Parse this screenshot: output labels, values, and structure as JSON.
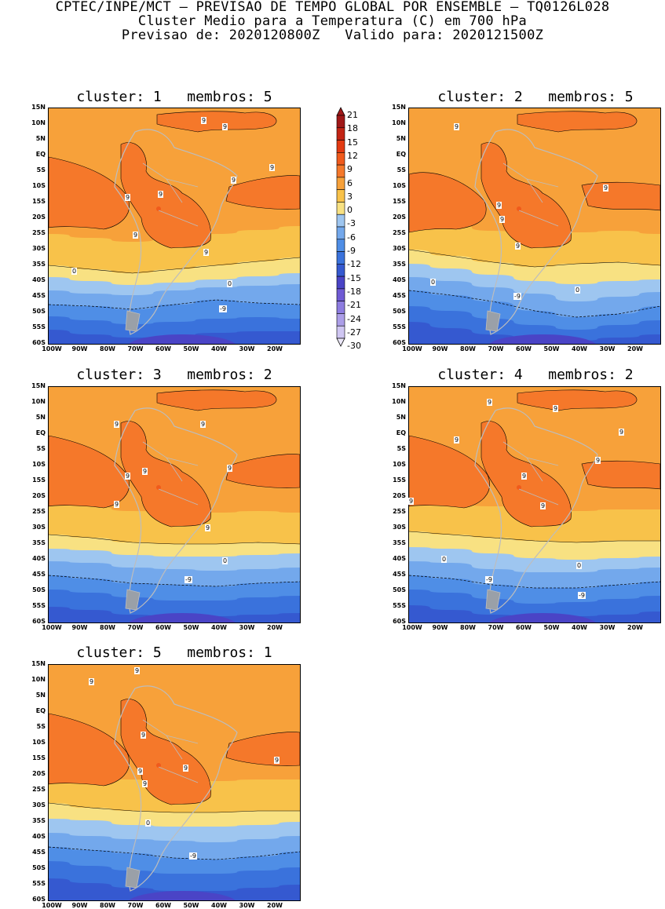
{
  "header": {
    "line1": "CPTEC/INPE/MCT — PREVISAO DE TEMPO GLOBAL POR ENSEMBLE — TQ0126L028",
    "line2": "Cluster Medio para a Temperatura (C) em 700 hPa",
    "line3": "Previsao de: 2020120800Z   Valido para: 2020121500Z"
  },
  "lat_labels": [
    "15N",
    "10N",
    "5N",
    "EQ",
    "5S",
    "10S",
    "15S",
    "20S",
    "25S",
    "30S",
    "35S",
    "40S",
    "45S",
    "50S",
    "55S",
    "60S"
  ],
  "lon_labels": [
    "100W",
    "90W",
    "80W",
    "70W",
    "60W",
    "50W",
    "40W",
    "30W",
    "20W"
  ],
  "colorbar": {
    "labels": [
      "21",
      "18",
      "15",
      "12",
      "9",
      "6",
      "3",
      "0",
      "-3",
      "-6",
      "-9",
      "-12",
      "-15",
      "-18",
      "-21",
      "-24",
      "-27",
      "-30"
    ],
    "colors": [
      "#a01818",
      "#c22414",
      "#e23a12",
      "#f05a1c",
      "#f5782a",
      "#f7a13a",
      "#f8c24a",
      "#f8e182",
      "#9ec6f0",
      "#73a8ec",
      "#4f8ee6",
      "#3a72dc",
      "#3559d0",
      "#4a44c6",
      "#6f5ad4",
      "#8d7ce0",
      "#ac9ee8",
      "#cfc6f2"
    ]
  },
  "panels": [
    {
      "title": "cluster: 1   membros: 5",
      "labels": [
        "9",
        "9",
        "9",
        "9",
        "9",
        "9",
        "9",
        "9",
        "0",
        "0",
        "-9"
      ]
    },
    {
      "title": "cluster: 2   membros: 5",
      "labels": [
        "9",
        "9",
        "9",
        "9",
        "9",
        "0",
        "0",
        "-9"
      ]
    },
    {
      "title": "cluster: 3   membros: 2",
      "labels": [
        "9",
        "9",
        "9",
        "9",
        "9",
        "9",
        "9",
        "0",
        "-9"
      ]
    },
    {
      "title": "cluster: 4   membros: 2",
      "labels": [
        "9",
        "9",
        "9",
        "9",
        "9",
        "9",
        "9",
        "9",
        "0",
        "0",
        "-9",
        "-9"
      ]
    },
    {
      "title": "cluster: 5   membros: 1",
      "labels": [
        "9",
        "9",
        "9",
        "9",
        "9",
        "9",
        "9",
        "0",
        "-9"
      ]
    }
  ]
}
